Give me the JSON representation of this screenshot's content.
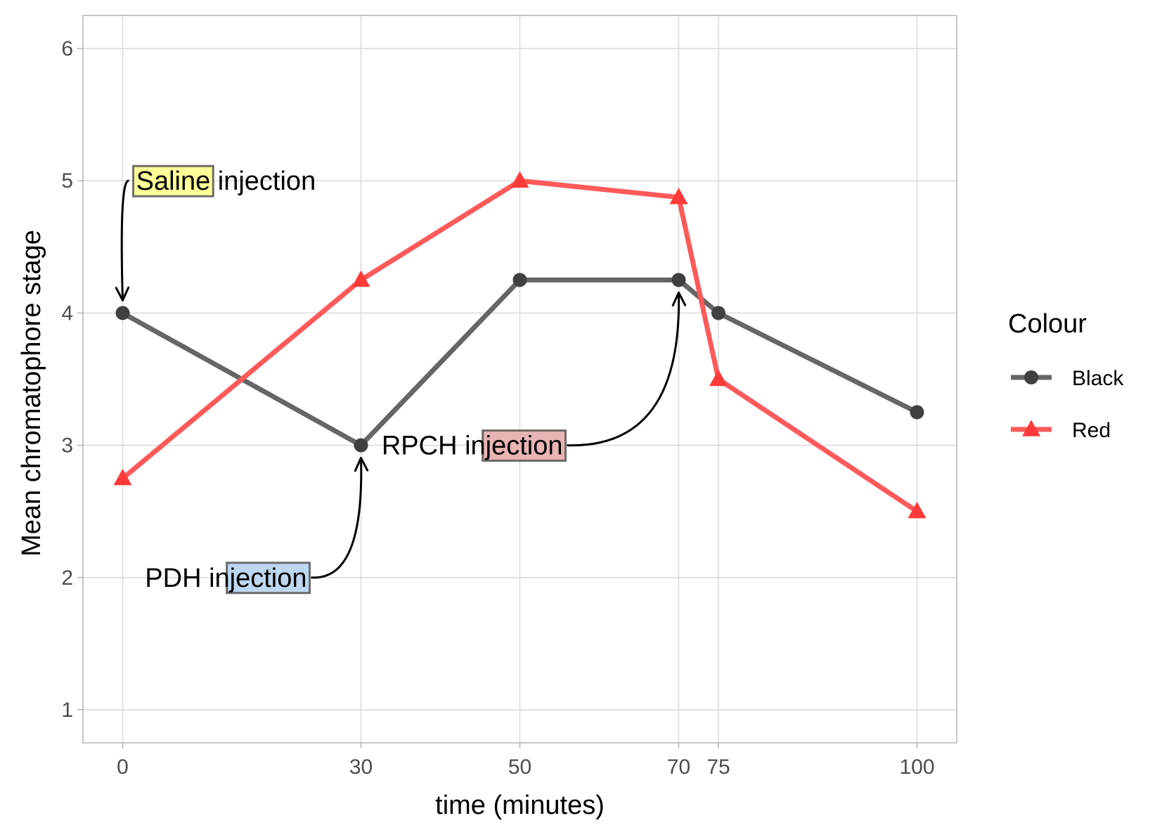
{
  "chart_data": {
    "type": "line",
    "title": "",
    "xlabel": "time (minutes)",
    "ylabel": "Mean chromatophore stage",
    "xlim": [
      -5,
      105
    ],
    "ylim": [
      0.75,
      6.25
    ],
    "x_ticks": [
      0,
      30,
      50,
      70,
      75,
      100
    ],
    "y_ticks": [
      1,
      2,
      3,
      4,
      5,
      6
    ],
    "grid": true,
    "legend": {
      "title": "Colour",
      "position": "right"
    },
    "series": [
      {
        "name": "Black",
        "color": "#666666",
        "marker": "circle",
        "x": [
          0,
          30,
          50,
          70,
          75,
          100
        ],
        "y": [
          4,
          3,
          4.25,
          4.25,
          4,
          3.25
        ]
      },
      {
        "name": "Red",
        "color": "#ff5a5a",
        "marker": "triangle",
        "x": [
          0,
          30,
          50,
          70,
          75,
          100
        ],
        "y": [
          2.75,
          4.25,
          5,
          4.875,
          3.5,
          2.5
        ]
      }
    ],
    "annotations": [
      {
        "label": "Saline injection",
        "highlight": "Saline",
        "fill": "#ffff99",
        "label_x": 13,
        "label_y": 5,
        "target_x": 0,
        "target_y": 4
      },
      {
        "label": "PDH injection",
        "highlight": "jection",
        "fill": "#bdd7f0",
        "label_x": 13,
        "label_y": 2,
        "target_x": 30,
        "target_y": 3
      },
      {
        "label": "RPCH injection",
        "highlight": "jection",
        "fill": "#e8b4b4",
        "label_x": 44,
        "label_y": 3,
        "target_x": 70,
        "target_y": 4.25
      }
    ]
  }
}
